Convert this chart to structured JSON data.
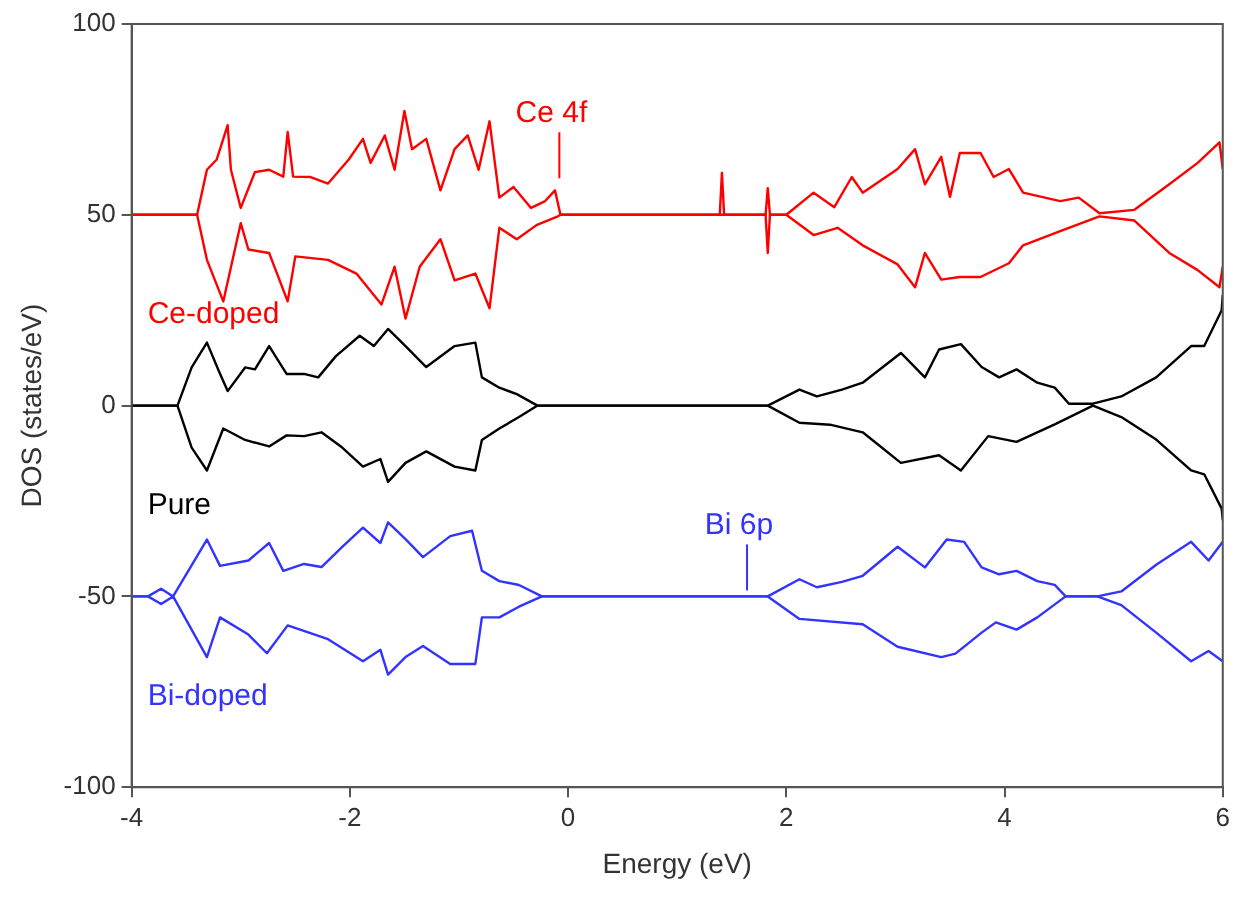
{
  "chart_data": {
    "type": "line",
    "xlabel": "Energy (eV)",
    "ylabel": "DOS (states/eV)",
    "xlim": [
      -4,
      6
    ],
    "xticks": [
      -4,
      -2,
      0,
      2,
      4,
      6
    ],
    "ylim": [
      -100,
      100
    ],
    "yticks": [
      -100,
      -50,
      0,
      50,
      100
    ],
    "grid": false,
    "legend": false,
    "marker": "none",
    "line_style": "solid",
    "annotations": [
      {
        "text": "Ce 4f",
        "x": -0.08,
        "y": 58
      },
      {
        "text": "Bi 6p",
        "x": 1.64,
        "y": -50
      }
    ],
    "series": [
      {
        "name": "Ce-doped",
        "color": "#ff0000",
        "x": [
          -4,
          -3.4,
          -3.31,
          -3.22,
          -3.12,
          -3.09,
          -3.0,
          -2.87,
          -2.74,
          -2.61,
          -2.57,
          -2.52,
          -2.36,
          -2.2,
          -2.01,
          -1.88,
          -1.81,
          -1.68,
          -1.59,
          -1.5,
          -1.43,
          -1.3,
          -1.17,
          -1.04,
          -0.92,
          -0.82,
          -0.72,
          -0.63,
          -0.5,
          -0.34,
          -0.21,
          -0.12,
          -0.07,
          1.39,
          1.41,
          1.43,
          1.81,
          1.83,
          1.85,
          2.0,
          2.25,
          2.44,
          2.6,
          2.7,
          3.02,
          3.18,
          3.27,
          3.42,
          3.5,
          3.59,
          3.78,
          3.9,
          4.04,
          4.17,
          4.51,
          4.68,
          4.87,
          5.19,
          5.51,
          5.77,
          5.97,
          6
        ],
        "values": [
          50,
          50,
          61.8,
          64.5,
          73.5,
          61.8,
          51.8,
          61.2,
          61.8,
          60,
          71.7,
          60,
          59.9,
          58.2,
          64.5,
          69.9,
          63.6,
          70.8,
          61.8,
          77.2,
          67.2,
          69.9,
          56.4,
          67.2,
          70.8,
          61.8,
          74.5,
          54.5,
          57.3,
          51.8,
          53.6,
          56.4,
          50,
          50,
          61,
          50,
          50,
          57,
          50,
          50,
          55.8,
          52,
          59.9,
          55.8,
          62,
          67.2,
          58,
          65.2,
          54.7,
          66.2,
          66.2,
          59.9,
          62,
          55.8,
          53.6,
          54.5,
          50.4,
          51.3,
          58,
          63.6,
          69,
          62
        ]
      },
      {
        "color": "#ff0000",
        "x": [
          -4,
          -3.4,
          -3.31,
          -3.16,
          -3.0,
          -2.93,
          -2.74,
          -2.57,
          -2.5,
          -2.2,
          -1.94,
          -1.71,
          -1.59,
          -1.49,
          -1.36,
          -1.17,
          -1.04,
          -0.85,
          -0.72,
          -0.63,
          -0.47,
          -0.29,
          -0.1,
          -0.07,
          1.81,
          1.83,
          1.85,
          2.0,
          2.25,
          2.47,
          2.7,
          3.02,
          3.18,
          3.27,
          3.42,
          3.59,
          3.78,
          4.04,
          4.17,
          4.51,
          4.87,
          5.19,
          5.51,
          5.77,
          5.97,
          6
        ],
        "values": [
          50,
          50,
          38.2,
          27.3,
          47.8,
          40.9,
          40,
          27.3,
          39.1,
          38.2,
          34.6,
          26.5,
          36.4,
          22.8,
          36.4,
          43.6,
          32.8,
          34.6,
          25.5,
          46.6,
          43.6,
          47.3,
          49.5,
          50,
          50,
          40,
          50,
          50,
          44.7,
          46.6,
          42,
          37,
          31,
          40,
          33,
          33.7,
          33.7,
          37.3,
          42,
          45.7,
          49.6,
          48.5,
          40,
          35.5,
          31,
          36.4
        ]
      },
      {
        "name": "Pure",
        "color": "#000000",
        "x": [
          -4,
          -3.58,
          -3.45,
          -3.31,
          -3.2,
          -3.12,
          -2.96,
          -2.87,
          -2.74,
          -2.58,
          -2.42,
          -2.29,
          -2.13,
          -1.91,
          -1.78,
          -1.65,
          -1.49,
          -1.3,
          -1.04,
          -0.85,
          -0.79,
          -0.63,
          -0.47,
          -0.28,
          1.83,
          2.12,
          2.28,
          2.51,
          2.7,
          3.05,
          3.27,
          3.4,
          3.6,
          3.79,
          3.95,
          4.11,
          4.3,
          4.46,
          4.59,
          4.81,
          5.07,
          5.39,
          5.71,
          5.83,
          5.99,
          6
        ],
        "values": [
          0,
          0,
          10,
          16.5,
          9,
          3.8,
          10,
          9.5,
          15.6,
          8.3,
          8.3,
          7.4,
          12.9,
          18.3,
          15.6,
          20.1,
          15.6,
          10.1,
          15.6,
          16.5,
          7.4,
          4.7,
          3,
          0,
          0,
          4.2,
          2.4,
          4.2,
          6,
          13.8,
          7.4,
          14.7,
          16.1,
          10.1,
          7.4,
          9.5,
          6,
          4.7,
          0.5,
          0.5,
          2.4,
          7.4,
          15.6,
          15.6,
          25,
          29
        ]
      },
      {
        "color": "#000000",
        "x": [
          -4,
          -3.58,
          -3.45,
          -3.31,
          -3.16,
          -2.96,
          -2.74,
          -2.58,
          -2.42,
          -2.26,
          -2.07,
          -1.88,
          -1.72,
          -1.65,
          -1.49,
          -1.3,
          -1.04,
          -0.85,
          -0.79,
          -0.63,
          -0.45,
          -0.28,
          1.83,
          2.12,
          2.4,
          2.7,
          3.05,
          3.4,
          3.6,
          3.85,
          4.11,
          4.46,
          4.81,
          5.07,
          5.39,
          5.71,
          5.83,
          5.99,
          6
        ],
        "values": [
          0,
          0,
          -11,
          -17,
          -6,
          -9,
          -10.7,
          -7.8,
          -8,
          -7,
          -11,
          -16,
          -14,
          -20,
          -15,
          -12,
          -16,
          -17,
          -9,
          -6,
          -3,
          0,
          0,
          -4.5,
          -5,
          -7,
          -15,
          -13,
          -17,
          -8,
          -9.5,
          -4.9,
          0,
          -3,
          -8.9,
          -17,
          -18,
          -27,
          -30
        ]
      },
      {
        "name": "Bi-doped",
        "color": "#3333ff",
        "x": [
          -4,
          -3.85,
          -3.73,
          -3.62,
          -3.31,
          -3.19,
          -2.93,
          -2.74,
          -2.61,
          -2.42,
          -2.26,
          -2.07,
          -1.88,
          -1.72,
          -1.65,
          -1.49,
          -1.33,
          -1.08,
          -0.88,
          -0.79,
          -0.63,
          -0.45,
          -0.24,
          1.83,
          2.12,
          2.28,
          2.51,
          2.7,
          3.02,
          3.27,
          3.47,
          3.63,
          3.79,
          3.95,
          4.11,
          4.3,
          4.46,
          4.56,
          4.85,
          5.07,
          5.39,
          5.71,
          5.87,
          6
        ],
        "values": [
          -50,
          -50,
          -48,
          -50,
          -35.1,
          -42,
          -40.6,
          -36,
          -43.3,
          -41.5,
          -42.3,
          -37,
          -32,
          -36,
          -30.6,
          -35,
          -39.7,
          -34.2,
          -32.8,
          -43.3,
          -46,
          -47,
          -50,
          -50,
          -45.5,
          -47.6,
          -46.2,
          -44.6,
          -37,
          -42.4,
          -35.1,
          -35.7,
          -42.4,
          -44.2,
          -43.3,
          -46,
          -47,
          -50,
          -50,
          -48.7,
          -41.7,
          -35.7,
          -40.6,
          -35.7
        ]
      },
      {
        "color": "#3333ff",
        "x": [
          -4,
          -3.85,
          -3.73,
          -3.62,
          -3.31,
          -3.19,
          -2.93,
          -2.76,
          -2.57,
          -2.2,
          -1.88,
          -1.72,
          -1.65,
          -1.49,
          -1.33,
          -1.08,
          -0.85,
          -0.79,
          -0.63,
          -0.45,
          -0.24,
          1.83,
          2.12,
          2.7,
          3.02,
          3.42,
          3.55,
          3.79,
          3.92,
          4.11,
          4.3,
          4.56,
          4.85,
          5.07,
          5.39,
          5.71,
          5.87,
          6
        ],
        "values": [
          -50,
          -50,
          -52,
          -50,
          -65.9,
          -55.5,
          -60,
          -64.9,
          -57.6,
          -61.2,
          -67,
          -64,
          -70.5,
          -65.9,
          -63,
          -67.7,
          -67.7,
          -55.5,
          -55.5,
          -52.7,
          -50,
          -50,
          -55.9,
          -57.3,
          -63.2,
          -65.9,
          -65,
          -59.5,
          -56.8,
          -58.7,
          -55.5,
          -50,
          -50,
          -52.3,
          -59.5,
          -67,
          -64.3,
          -67
        ]
      }
    ]
  }
}
